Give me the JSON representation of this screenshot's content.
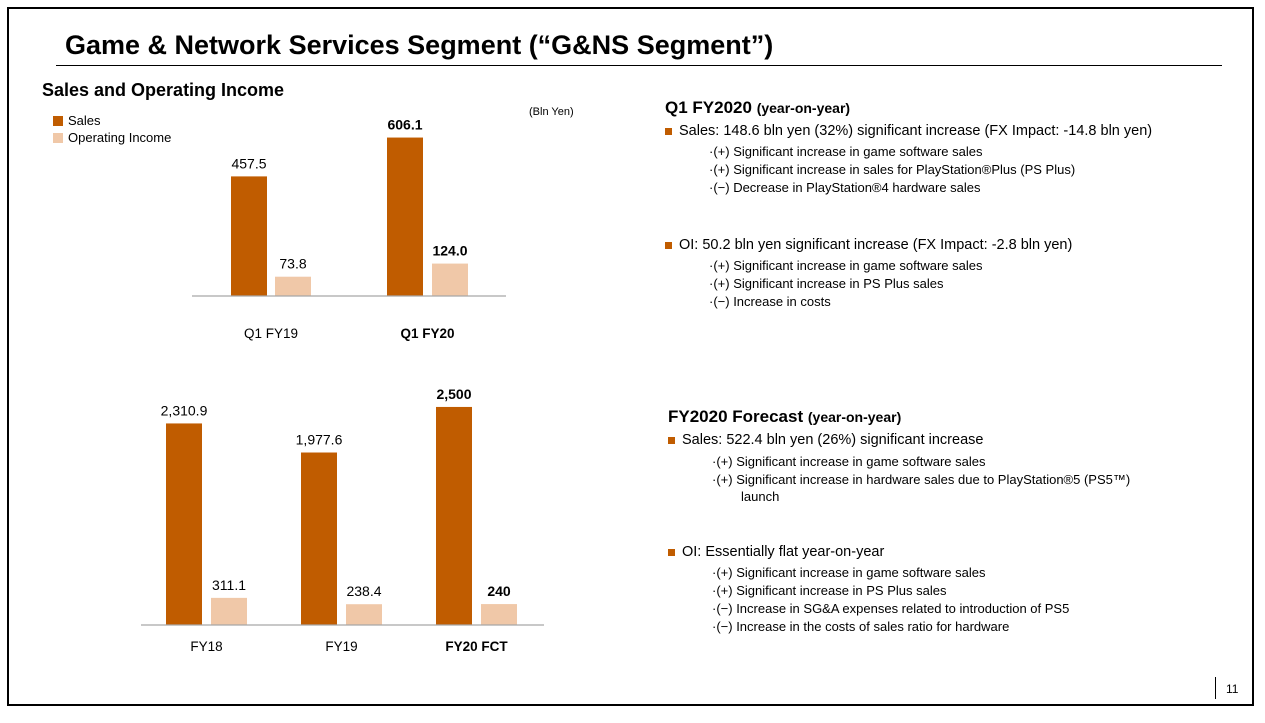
{
  "title": "Game & Network Services Segment (“G&NS Segment”)",
  "section_heading": "Sales and Operating Income",
  "unit_label": "(Bln Yen)",
  "legend": [
    {
      "label": "Sales",
      "color": "#c05c00"
    },
    {
      "label": "Operating Income",
      "color": "#f0c8a8"
    }
  ],
  "chart_data": [
    {
      "type": "bar",
      "title": "",
      "categories": [
        "Q1 FY19",
        "Q1 FY20"
      ],
      "bold_categories": [
        "Q1 FY20"
      ],
      "series": [
        {
          "name": "Sales",
          "values": [
            457.5,
            606.1
          ],
          "labels": [
            "457.5",
            "606.1"
          ],
          "color": "#c05c00"
        },
        {
          "name": "Operating Income",
          "values": [
            73.8,
            124.0
          ],
          "labels": [
            "73.8",
            "124.0"
          ],
          "color": "#f0c8a8"
        }
      ],
      "ylim": [
        0,
        700
      ],
      "grid": false
    },
    {
      "type": "bar",
      "title": "",
      "categories": [
        "FY18",
        "FY19",
        "FY20 FCT"
      ],
      "bold_categories": [
        "FY20 FCT"
      ],
      "series": [
        {
          "name": "Sales",
          "values": [
            2310.9,
            1977.6,
            2500
          ],
          "labels": [
            "2,310.9",
            "1,977.6",
            "2,500"
          ],
          "color": "#c05c00"
        },
        {
          "name": "Operating Income",
          "values": [
            311.1,
            238.4,
            240
          ],
          "labels": [
            "311.1",
            "238.4",
            "240"
          ],
          "color": "#f0c8a8"
        }
      ],
      "ylim": [
        0,
        2700
      ],
      "grid": false
    }
  ],
  "q1": {
    "heading": "Q1 FY2020",
    "heading_suffix": "(year-on-year)",
    "sales_bullet": "Sales: 148.6 bln yen (32%) significant increase (FX Impact: -14.8 bln yen)",
    "sales_items": [
      "·(+) Significant increase in game software sales",
      "·(+) Significant increase in sales for PlayStation®Plus (PS Plus)",
      "·(−) Decrease in PlayStation®4 hardware sales"
    ],
    "oi_bullet": "OI: 50.2 bln yen significant increase (FX Impact:  -2.8 bln yen)",
    "oi_items": [
      "·(+) Significant increase in game software sales",
      "·(+) Significant increase in PS Plus sales",
      "·(−) Increase in costs"
    ]
  },
  "fy": {
    "heading": "FY2020 Forecast",
    "heading_suffix": "(year-on-year)",
    "sales_bullet": "Sales: 522.4 bln yen (26%) significant increase",
    "sales_items": [
      "·(+) Significant increase in game software sales",
      "·(+) Significant increase in hardware sales due to PlayStation®5 (PS5™)"
    ],
    "sales_item_cont": "launch",
    "oi_bullet": "OI: Essentially flat year-on-year",
    "oi_items": [
      "·(+) Significant increase in game software sales",
      "·(+) Significant increase in PS Plus sales",
      "·(−) Increase in SG&A expenses related to introduction of PS5",
      "·(−) Increase in the costs of sales ratio for hardware"
    ]
  },
  "page_number": "11"
}
